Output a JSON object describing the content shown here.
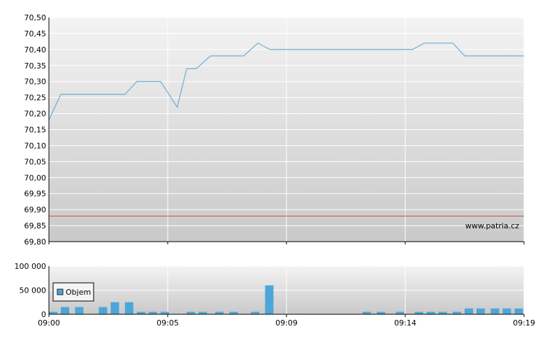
{
  "watermark": "www.patria.cz",
  "colors": {
    "price_line": "#6aaed6",
    "reference_line": "#d24a4a",
    "volume_bar": "#4da6d9",
    "grid": "#ffffff",
    "plot_top": "#f3f3f3",
    "plot_bottom": "#c9c9c9"
  },
  "chart_data": [
    {
      "type": "line",
      "title": "",
      "xlabel": "",
      "ylabel": "",
      "xlim": [
        "09:00",
        "09:19"
      ],
      "ylim": [
        69.8,
        70.5
      ],
      "y_ticks": [
        "70,50",
        "70,45",
        "70,40",
        "70,35",
        "70,30",
        "70,25",
        "70,20",
        "70,15",
        "70,10",
        "70,05",
        "70,00",
        "69,95",
        "69,90",
        "69,85",
        "69,80"
      ],
      "x_tick_labels": [
        "09:00",
        "09:05",
        "09:09",
        "09:14",
        "09:19"
      ],
      "x_tick_minutes": [
        0,
        5,
        10,
        15,
        20
      ],
      "reference_value": 69.88,
      "grid": true,
      "series": [
        {
          "points": [
            [
              0.0,
              70.18
            ],
            [
              0.5,
              70.26
            ],
            [
              1.0,
              70.26
            ],
            [
              3.2,
              70.26
            ],
            [
              3.7,
              70.3
            ],
            [
              4.7,
              70.3
            ],
            [
              5.4,
              70.22
            ],
            [
              5.8,
              70.34
            ],
            [
              6.2,
              70.34
            ],
            [
              6.8,
              70.38
            ],
            [
              8.2,
              70.38
            ],
            [
              8.8,
              70.42
            ],
            [
              9.3,
              70.4
            ],
            [
              15.3,
              70.4
            ],
            [
              15.8,
              70.42
            ],
            [
              17.0,
              70.42
            ],
            [
              17.5,
              70.38
            ],
            [
              20.0,
              70.38
            ]
          ]
        }
      ]
    },
    {
      "type": "bar",
      "title": "",
      "xlabel": "",
      "ylabel": "",
      "ylim": [
        0,
        100000
      ],
      "y_ticks": [
        "100 000",
        "50 000",
        "0"
      ],
      "x_tick_labels": [
        "09:00",
        "09:05",
        "09:09",
        "09:14",
        "09:19"
      ],
      "x_tick_minutes": [
        0,
        5,
        10,
        15,
        20
      ],
      "legend": {
        "label": "Objem",
        "position": "left"
      },
      "grid": true,
      "series": [
        {
          "name": "Objem",
          "bars": [
            [
              0.0,
              5000
            ],
            [
              0.5,
              15000
            ],
            [
              1.1,
              15000
            ],
            [
              2.1,
              15000
            ],
            [
              2.6,
              25000
            ],
            [
              3.2,
              25000
            ],
            [
              3.7,
              5000
            ],
            [
              4.2,
              5000
            ],
            [
              4.7,
              5000
            ],
            [
              5.8,
              5000
            ],
            [
              6.3,
              5000
            ],
            [
              7.0,
              5000
            ],
            [
              7.6,
              5000
            ],
            [
              8.5,
              5000
            ],
            [
              9.1,
              60000
            ],
            [
              13.2,
              5000
            ],
            [
              13.8,
              5000
            ],
            [
              14.6,
              5000
            ],
            [
              15.4,
              5000
            ],
            [
              15.9,
              5000
            ],
            [
              16.4,
              5000
            ],
            [
              17.0,
              5000
            ],
            [
              17.5,
              12000
            ],
            [
              18.0,
              12000
            ],
            [
              18.6,
              12000
            ],
            [
              19.1,
              12000
            ],
            [
              19.6,
              12000
            ]
          ]
        }
      ]
    }
  ]
}
